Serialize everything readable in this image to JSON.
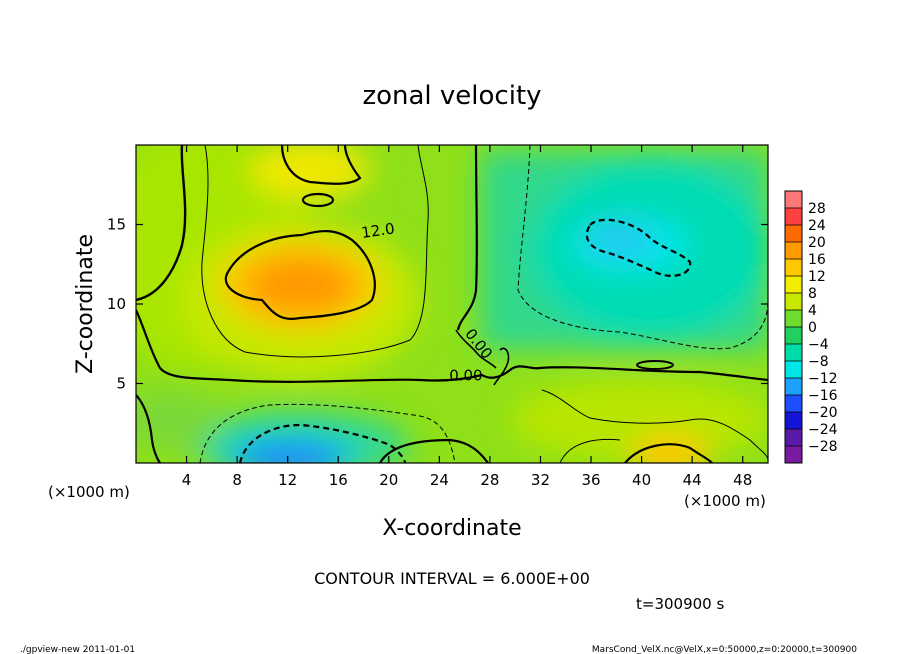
{
  "chart_data": {
    "type": "heatmap",
    "title": "zonal velocity",
    "xlabel": "X-coordinate",
    "ylabel": "Z-coordinate",
    "x_unit_note": "(×1000 m)",
    "y_unit_note": "(×1000 m)",
    "xlim": [
      0,
      50
    ],
    "ylim": [
      0,
      20
    ],
    "x_ticks": [
      4,
      8,
      12,
      16,
      20,
      24,
      28,
      32,
      36,
      40,
      44,
      48
    ],
    "y_ticks": [
      5,
      10,
      15
    ],
    "x_tick_labels": [
      "4",
      "8",
      "12",
      "16",
      "20",
      "24",
      "28",
      "32",
      "36",
      "40",
      "44",
      "48"
    ],
    "y_tick_labels": [
      "5",
      "10",
      "15"
    ],
    "colorbar": {
      "levels": [
        -28,
        -24,
        -20,
        -16,
        -12,
        -8,
        -4,
        0,
        4,
        8,
        12,
        16,
        20,
        24,
        28
      ],
      "labels": [
        "28",
        "24",
        "20",
        "16",
        "12",
        "8",
        "4",
        "0",
        "−4",
        "−8",
        "−12",
        "−16",
        "−20",
        "−24",
        "−28"
      ],
      "colors": [
        "#ff7878",
        "#ff4040",
        "#ff6a00",
        "#ff9a00",
        "#ffc800",
        "#f2ec00",
        "#c8e800",
        "#6cdc2e",
        "#22d060",
        "#00dca8",
        "#00e6e6",
        "#1ea0ff",
        "#1c50ff",
        "#1414d8",
        "#5a1aa8",
        "#7a1aa0"
      ]
    },
    "contour_labels": [
      {
        "text": "12.0",
        "x": 19.2,
        "z": 14.3
      },
      {
        "text": "0.00",
        "x": 26.1,
        "z": 5.2
      },
      {
        "text": "0.00",
        "x": 26.8,
        "z": 7.3
      }
    ],
    "contour_interval_text": "CONTOUR INTERVAL = 6.000E+00",
    "time_text": "t=300900 s",
    "footer_left": "./gpview-new  2011-01-01",
    "footer_right": "MarsCond_VelX.nc@VelX,x=0:50000,z=0:20000,t=300900",
    "field_features": [
      {
        "kind": "max",
        "x": 14,
        "z": 11.5,
        "value": 19
      },
      {
        "kind": "min",
        "x": 12,
        "z": 0.5,
        "value": -16
      },
      {
        "kind": "min",
        "x": 40.5,
        "z": 13.8,
        "value": -11
      },
      {
        "kind": "max",
        "x": 42,
        "z": 0.6,
        "value": 12
      }
    ]
  }
}
